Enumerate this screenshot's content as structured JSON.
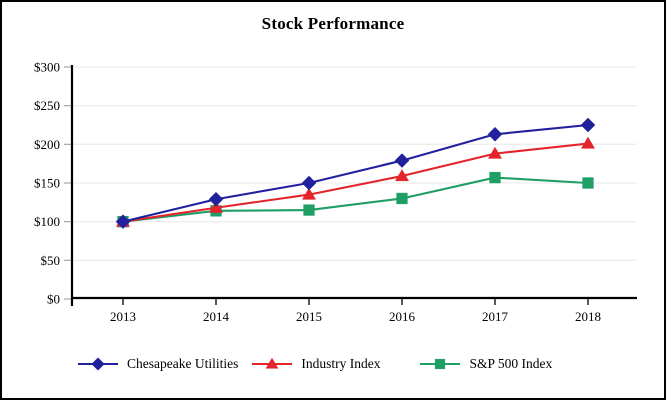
{
  "header": {
    "title": "Stock Performance"
  },
  "chart_data": {
    "type": "line",
    "title": "Stock Performance",
    "categories": [
      "2013",
      "2014",
      "2015",
      "2016",
      "2017",
      "2018"
    ],
    "series": [
      {
        "name": "Chesapeake Utilities",
        "marker": "diamond",
        "color": "#21219E",
        "values": [
          100,
          129,
          150,
          179,
          213,
          225
        ]
      },
      {
        "name": "Industry Index",
        "marker": "triangle",
        "color": "#E3242B",
        "values": [
          100,
          118,
          135,
          159,
          188,
          201
        ]
      },
      {
        "name": "S&P 500 Index",
        "marker": "square",
        "color": "#1F9E66",
        "values": [
          100,
          114,
          115,
          130,
          157,
          150
        ]
      }
    ],
    "xlabel": "",
    "ylabel": "",
    "ylim": [
      0,
      300
    ],
    "ytick_step": 50,
    "ytick_prefix": "$",
    "grid": true,
    "gridline_color": "#EDEDED",
    "axis_color": "#000000",
    "legend_position": "bottom"
  }
}
